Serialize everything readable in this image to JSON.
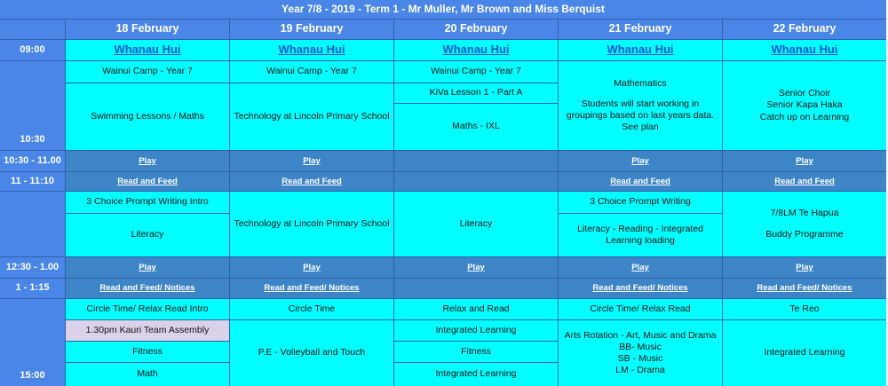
{
  "title": "Year 7/8 - 2019 - Term 1 - Mr Muller, Mr Brown and Miss Berquist",
  "times": [
    "09:00",
    "10:30",
    "10:30 - 11.00",
    "11 - 11:10",
    "12:30 - 1.00",
    "1 - 1:15",
    "15:00"
  ],
  "days": [
    {
      "date": "18 February",
      "entries": [
        "Whanau Hui",
        "Wainui Camp - Year 7",
        "Swimming Lessons / Maths",
        "Play",
        "Read and Feed",
        "3 Choice Prompt Writing Intro",
        "Literacy",
        "Play",
        "Read and Feed/ Notices",
        "Circle Time/ Relax Read Intro",
        "1.30pm Kauri Team Assembly",
        "Fitness",
        "Math"
      ]
    },
    {
      "date": "19 February",
      "entries": [
        "Whanau Hui",
        "Wainui Camp - Year 7",
        "Technology at Lincoln Primary School",
        "Play",
        "Read and Feed",
        "Technology at Lincoln Primary School",
        "Play",
        "Read and Feed/ Notices",
        "Circle Time",
        "P.E - Volleyball and Touch"
      ]
    },
    {
      "date": "20 February",
      "entries": [
        "Whanau Hui",
        "Wainui Camp - Year 7",
        "KiVa Lesson 1 - Part A",
        "Maths - IXL",
        "Literacy",
        "Play",
        "Relax and Read",
        "Integrated Learning",
        "Fitness",
        "Integrated Learning"
      ]
    },
    {
      "date": "21 February",
      "entries": [
        "Whanau Hui",
        [
          "Mathematics",
          "Students will start working in groupings based on last years data. See plan"
        ],
        "Play",
        "Read and Feed",
        "3 Choice Prompt Writing",
        "Literacy - Reading - Integrated Learning loading",
        "Play",
        "Read and Feed/ Notices",
        "Circle Time/ Relax Read",
        [
          "Arts Rotation - Art, Music and Drama",
          "BB- Music",
          "SB - Music",
          "LM - Drama"
        ]
      ]
    },
    {
      "date": "22 February",
      "entries": [
        "Whanau Hui",
        [
          "Senior Choir",
          "Senior Kapa Haka",
          "Catch up on Learning"
        ],
        "Play",
        "Read and Feed",
        [
          "7/8LM Te Hapua",
          "Buddy Programme"
        ],
        "Play",
        "Read and Feed/ Notices",
        "Te Reo",
        "Integrated Learning"
      ]
    }
  ]
}
